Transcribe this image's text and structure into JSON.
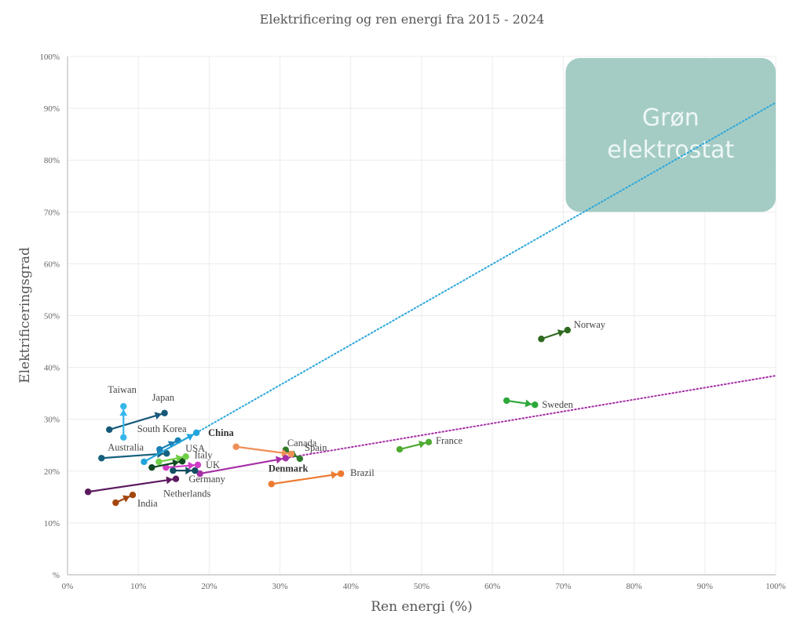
{
  "chart_data": {
    "type": "scatter",
    "title": "Elektrificering og ren energi fra 2015 - 2024",
    "xlabel": "Ren energi (%)",
    "ylabel": "Elektrificeringsgrad",
    "xlim": [
      0,
      100
    ],
    "ylim": [
      0,
      100
    ],
    "x_ticks": [
      "0%",
      "10%",
      "20%",
      "30%",
      "40%",
      "50%",
      "60%",
      "70%",
      "80%",
      "90%",
      "100%"
    ],
    "y_ticks": [
      "%",
      "10%",
      "20%",
      "30%",
      "40%",
      "50%",
      "60%",
      "70%",
      "80%",
      "90%",
      "100%"
    ],
    "grid": true,
    "zone": {
      "label_lines": [
        "Grøn",
        "elektrostat"
      ],
      "x_range": [
        70,
        100
      ],
      "y_range": [
        70,
        100
      ],
      "color": "#9fc9c2"
    },
    "trendlines": [
      {
        "name": "trend-blue",
        "color": "#2aa6db",
        "from": [
          18.2,
          27.4
        ],
        "to": [
          100,
          91.1
        ]
      },
      {
        "name": "trend-purple",
        "color": "#a62fa6",
        "from": [
          30.8,
          22.5
        ],
        "to": [
          100,
          38.4
        ]
      }
    ],
    "series": [
      {
        "name": "Norway",
        "color": "#2f6a1f",
        "start": [
          66.9,
          45.5
        ],
        "end": [
          70.6,
          47.2
        ],
        "bold": false
      },
      {
        "name": "Sweden",
        "color": "#2ea83a",
        "start": [
          62.0,
          33.6
        ],
        "end": [
          66.0,
          32.8
        ],
        "bold": false
      },
      {
        "name": "France",
        "color": "#4fab32",
        "start": [
          46.9,
          24.2
        ],
        "end": [
          51.0,
          25.6
        ],
        "bold": false
      },
      {
        "name": "Brazil",
        "color": "#ec7a30",
        "start": [
          28.8,
          17.5
        ],
        "end": [
          38.6,
          19.5
        ],
        "bold": false
      },
      {
        "name": "Canada",
        "color": "#2d7a2a",
        "start": [
          30.8,
          24.1
        ],
        "end": [
          32.8,
          22.4
        ],
        "bold": false
      },
      {
        "name": "Spain",
        "color": "#ef9058",
        "start": [
          23.8,
          24.7
        ],
        "end": [
          31.6,
          23.3
        ],
        "bold": false
      },
      {
        "name": "Denmark",
        "color": "#a62fa6",
        "start": [
          18.7,
          19.5
        ],
        "end": [
          30.8,
          22.5
        ],
        "bold": true
      },
      {
        "name": "Netherlands",
        "color": "#5c1a5e",
        "start": [
          2.9,
          16.0
        ],
        "end": [
          15.3,
          18.5
        ],
        "bold": false
      },
      {
        "name": "Germany",
        "color": "#114e62",
        "start": [
          14.9,
          20.1
        ],
        "end": [
          18.0,
          20.1
        ],
        "bold": false
      },
      {
        "name": "UK",
        "color": "#d03cc7",
        "start": [
          13.9,
          20.7
        ],
        "end": [
          18.4,
          21.2
        ],
        "bold": false
      },
      {
        "name": "USA",
        "color": "#0f4a22",
        "start": [
          11.9,
          20.7
        ],
        "end": [
          16.2,
          21.9
        ],
        "bold": false
      },
      {
        "name": "Italy",
        "color": "#6fcf45",
        "start": [
          12.9,
          21.8
        ],
        "end": [
          16.7,
          22.8
        ],
        "bold": false
      },
      {
        "name": "Australia",
        "color": "#16607e",
        "start": [
          4.8,
          22.5
        ],
        "end": [
          14.0,
          23.4
        ],
        "bold": false
      },
      {
        "name": "South Korea",
        "color": "#1d80b5",
        "start": [
          13.0,
          24.2
        ],
        "end": [
          15.6,
          25.9
        ],
        "bold": false
      },
      {
        "name": "China",
        "color": "#22a4dc",
        "start": [
          10.8,
          21.8
        ],
        "end": [
          18.2,
          27.4
        ],
        "bold": true
      },
      {
        "name": "Japan",
        "color": "#17597a",
        "start": [
          5.9,
          28.0
        ],
        "end": [
          13.7,
          31.2
        ],
        "bold": false
      },
      {
        "name": "Taiwan",
        "color": "#36b7ec",
        "start": [
          7.9,
          26.5
        ],
        "end": [
          7.9,
          32.5
        ],
        "bold": false
      },
      {
        "name": "India",
        "color": "#a3470f",
        "start": [
          6.8,
          13.9
        ],
        "end": [
          9.2,
          15.4
        ],
        "bold": false
      }
    ]
  }
}
